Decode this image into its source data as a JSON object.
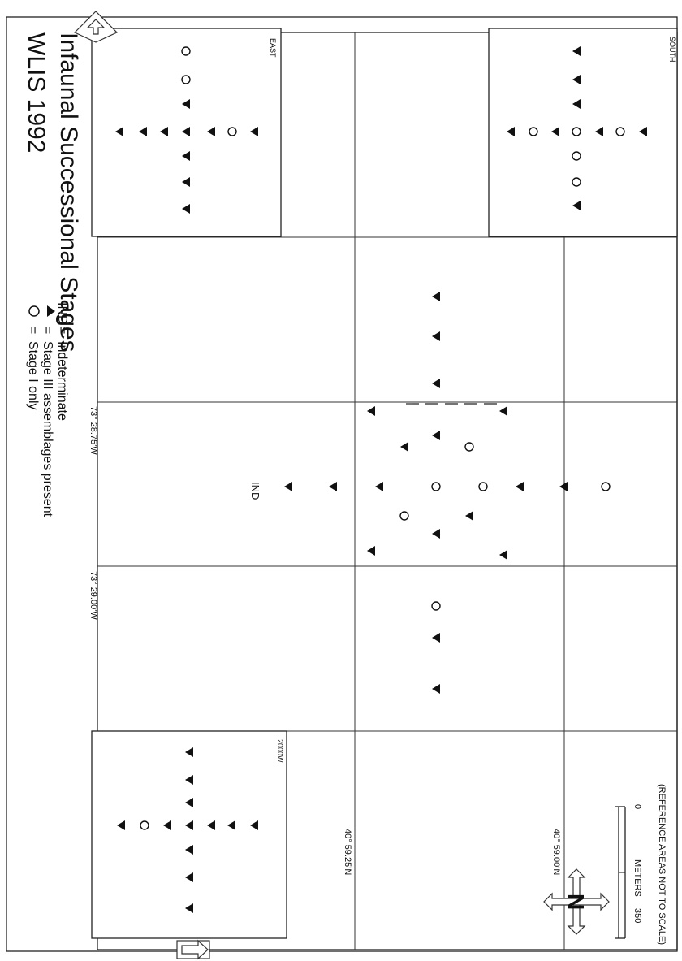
{
  "title": {
    "line1": "WLIS 1992",
    "line2": "Infaunal Successional Stages"
  },
  "legend": {
    "items": [
      {
        "symbol": "circle-icon",
        "eq": "=",
        "text": "Stage I only"
      },
      {
        "symbol": "triangle-icon",
        "eq": "=",
        "text": "Stage III assemblages present"
      },
      {
        "symbol": "IND",
        "eq": "=",
        "text": "Indeterminate"
      }
    ]
  },
  "grid_labels": {
    "lon_1": "73° 28.75'W",
    "lon_2": "73° 29.00'W",
    "lat_1": "40° 59.25'N",
    "lat_2": "40° 59.00'N"
  },
  "insets": {
    "east": "EAST",
    "south": "SOUTH",
    "west": "2000W"
  },
  "ind_label": "IND",
  "scale_bar": {
    "start": "0",
    "end": "350",
    "units": "METERS",
    "note": "(REFERENCE AREAS NOT TO SCALE)"
  },
  "compass": {
    "icon": "north-arrow-icon",
    "letter": "N"
  },
  "nav_arrows": [
    "arrow-right-icon",
    "arrow-left-icon"
  ],
  "colors": {
    "ink": "#111111",
    "paper": "#ffffff"
  }
}
